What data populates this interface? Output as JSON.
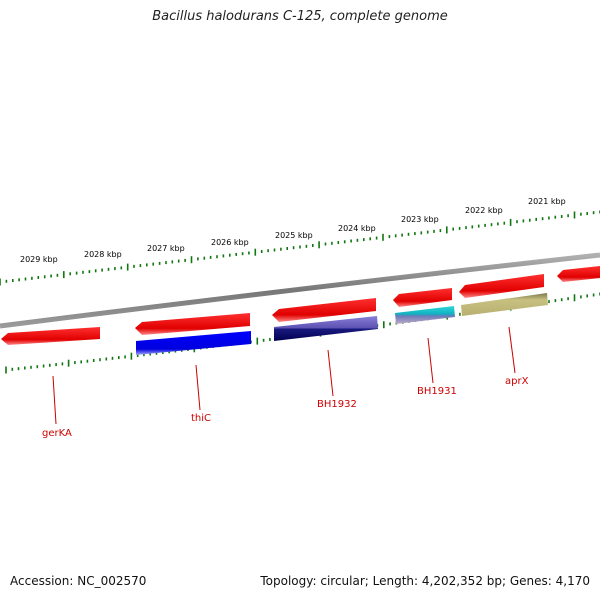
{
  "title": "Bacillus halodurans C-125, complete genome",
  "footer": {
    "accession": "Accession: NC_002570",
    "summary": "Topology: circular; Length: 4,202,352 bp; Genes: 4,170"
  },
  "colors": {
    "backbone": "#8a8a8a",
    "tick": "#117711",
    "gene_forward": "#ee1111",
    "gene_label": "#cc0000"
  },
  "kbp_labels": [
    "2029 kbp",
    "2028 kbp",
    "2027 kbp",
    "2026 kbp",
    "2025 kbp",
    "2024 kbp",
    "2023 kbp",
    "2022 kbp",
    "2021 kbp"
  ],
  "gene_labels": [
    "gerKA",
    "thiC",
    "BH1932",
    "BH1931",
    "aprX"
  ]
}
